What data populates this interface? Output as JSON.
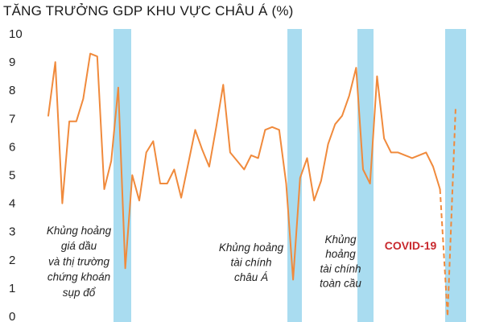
{
  "chart_data": {
    "type": "line",
    "title": "TĂNG TRƯỞNG GDP KHU VỰC CHÂU Á (%)",
    "xlabel": "",
    "ylabel": "",
    "ylim": [
      0,
      10
    ],
    "yticks": [
      "0",
      "1",
      "2",
      "3",
      "4",
      "5",
      "6",
      "7",
      "8",
      "9",
      "10"
    ],
    "grid": false,
    "legend": "none",
    "colors": {
      "line": "#f08a3c",
      "band": "#a9dcf0",
      "covid_label": "#c8282d"
    },
    "series": [
      {
        "values": [
          7.1,
          9.0,
          4.0,
          6.9,
          6.9,
          7.7,
          9.3,
          9.2,
          4.5,
          5.5,
          8.1,
          1.7,
          5.0,
          4.1,
          5.8,
          6.2,
          4.7,
          4.7,
          5.2,
          4.2,
          5.4,
          6.6,
          5.9,
          5.3,
          6.7,
          8.2,
          5.8,
          5.5,
          5.2,
          5.7,
          5.6,
          6.6,
          6.7,
          6.6,
          4.7,
          1.3,
          4.9,
          5.6,
          4.1,
          4.8,
          6.1,
          6.8,
          7.1,
          7.8,
          8.8,
          5.2,
          4.7,
          8.5,
          6.3,
          5.8,
          5.8,
          5.7,
          5.6,
          5.7,
          5.8,
          5.3,
          4.5
        ]
      }
    ],
    "projection": {
      "values": [
        4.5,
        0.0,
        7.4
      ],
      "style": "dashed"
    },
    "shaded_periods": [
      {
        "label": "Khủng hoảng\ngiá dầu\nvà thị trường\nchứng khoán\nsụp đổ"
      },
      {
        "label": "Khủng hoảng\ntài chính\nchâu Á"
      },
      {
        "label": "Khủng\nhoảng\ntài chính\ntoàn cầu"
      },
      {
        "label": "COVID-19"
      }
    ]
  }
}
